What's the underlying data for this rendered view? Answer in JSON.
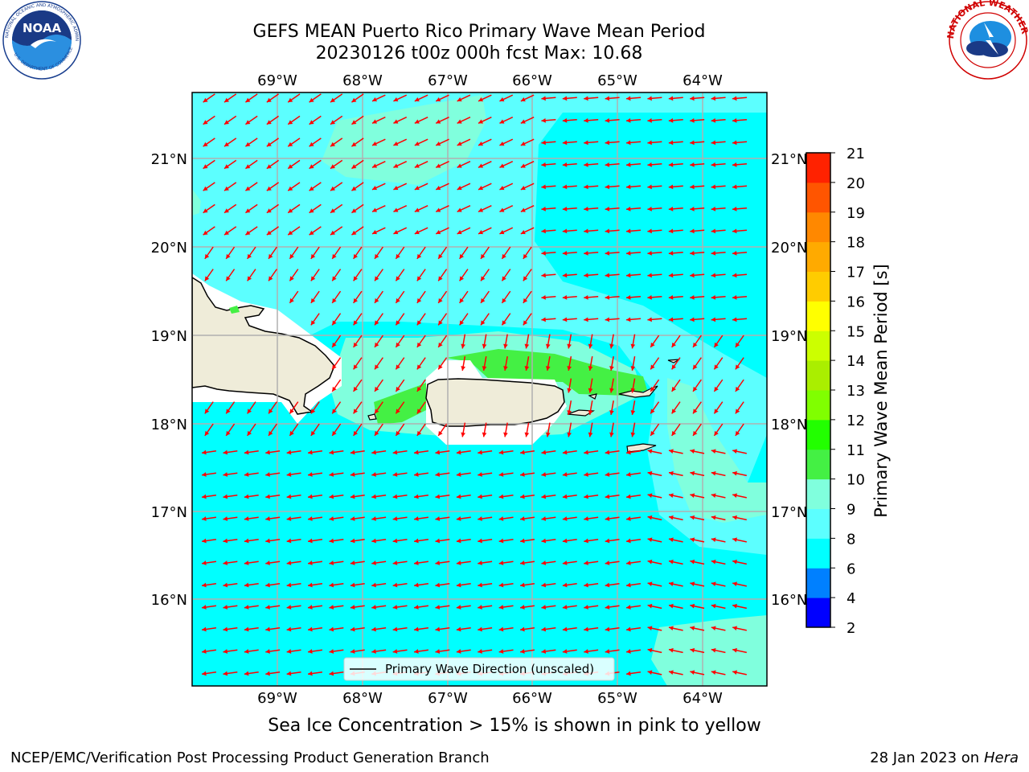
{
  "title": {
    "line1": "GEFS MEAN Puerto Rico Primary Wave Mean Period",
    "line2": "20230126 t00z 000h fcst   Max: 10.68"
  },
  "logos": {
    "left": "noaa-logo",
    "right": "nws-logo"
  },
  "map": {
    "lon_labels": [
      "69°W",
      "68°W",
      "67°W",
      "66°W",
      "65°W",
      "64°W"
    ],
    "lat_labels": [
      "21°N",
      "20°N",
      "19°N",
      "18°N",
      "17°N",
      "16°N"
    ],
    "legend_label": "Primary Wave Direction (unscaled)",
    "colors": {
      "ocean_base": "#00ffff",
      "period_9_10": "#80ffdd",
      "period_8_9": "#5cffff",
      "period_10_11": "#44f044",
      "land": "#efecd9",
      "arrow": "#ff0000",
      "grid": "#b0b0b0"
    }
  },
  "colorbar": {
    "label": "Primary Wave Mean Period [s]",
    "ticks": [
      "2",
      "4",
      "6",
      "8",
      "9",
      "10",
      "11",
      "12",
      "13",
      "14",
      "15",
      "16",
      "17",
      "18",
      "19",
      "20",
      "21"
    ],
    "colors": [
      "#0000ff",
      "#0080ff",
      "#00ffff",
      "#5cffff",
      "#80ffdd",
      "#44f044",
      "#22ff00",
      "#80ff00",
      "#aaee00",
      "#ccff00",
      "#ffff00",
      "#ffcc00",
      "#ffaa00",
      "#ff8800",
      "#ff5500",
      "#ff2200"
    ]
  },
  "note": "Sea Ice Concentration > 15% is shown in pink to yellow",
  "footer": {
    "left": "NCEP/EMC/Verification Post Processing Product Generation Branch",
    "right_prefix": "28 Jan 2023 on ",
    "right_system": "Hera"
  }
}
